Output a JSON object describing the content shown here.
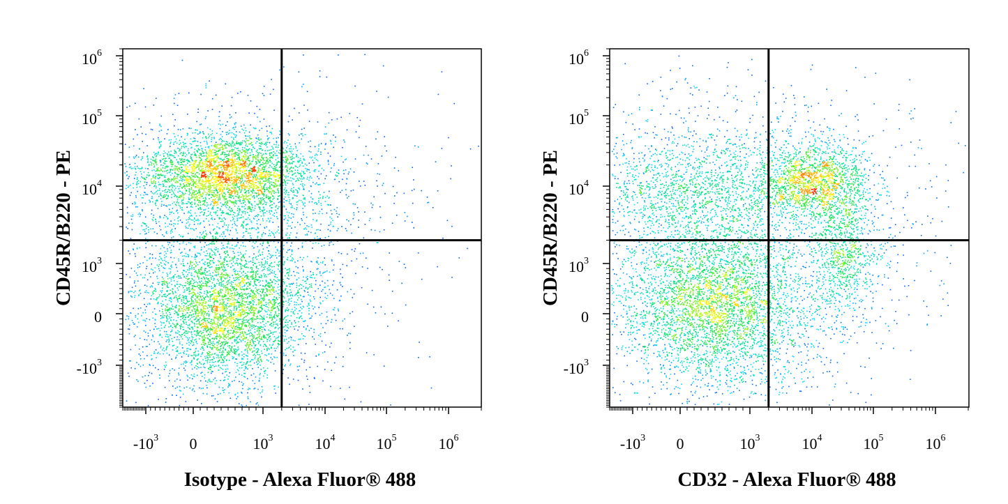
{
  "chart_data": [
    {
      "type": "scatter",
      "subtype": "flow-cytometry-density-dot-plot",
      "title": "",
      "xlabel": "Isotype - Alexa Fluor® 488",
      "ylabel": "CD45R/B220 - PE",
      "x_scale": "biexponential",
      "y_scale": "biexponential",
      "xlim": [
        -2500,
        2000000
      ],
      "ylim": [
        -3500,
        1200000
      ],
      "x_ticks": [
        {
          "value": -1000,
          "base": "-10",
          "exp": "3"
        },
        {
          "value": 0,
          "base": "0",
          "exp": ""
        },
        {
          "value": 1000,
          "base": "10",
          "exp": "3"
        },
        {
          "value": 10000,
          "base": "10",
          "exp": "4"
        },
        {
          "value": 100000,
          "base": "10",
          "exp": "5"
        },
        {
          "value": 1000000,
          "base": "10",
          "exp": "6"
        }
      ],
      "y_ticks": [
        {
          "value": -1000,
          "base": "-10",
          "exp": "3"
        },
        {
          "value": 0,
          "base": "0",
          "exp": ""
        },
        {
          "value": 1000,
          "base": "10",
          "exp": "3"
        },
        {
          "value": 10000,
          "base": "10",
          "exp": "4"
        },
        {
          "value": 100000,
          "base": "10",
          "exp": "5"
        },
        {
          "value": 1000000,
          "base": "10",
          "exp": "6"
        }
      ],
      "quadrant_gate": {
        "x": 2000,
        "y": 2000
      },
      "populations": [
        {
          "x_center": 300,
          "y_center": 12000,
          "density": "high"
        },
        {
          "x_center": 300,
          "y_center": 200,
          "density": "high"
        }
      ],
      "grid": false,
      "legend": "none",
      "colormap": [
        "#0000ff",
        "#00ffff",
        "#00ff00",
        "#ffff00",
        "#ff0000"
      ]
    },
    {
      "type": "scatter",
      "subtype": "flow-cytometry-density-dot-plot",
      "title": "",
      "xlabel": "CD32 - Alexa Fluor® 488",
      "ylabel": "CD45R/B220 - PE",
      "x_scale": "biexponential",
      "y_scale": "biexponential",
      "xlim": [
        -2500,
        2000000
      ],
      "ylim": [
        -3500,
        1200000
      ],
      "x_ticks": [
        {
          "value": -1000,
          "base": "-10",
          "exp": "3"
        },
        {
          "value": 0,
          "base": "0",
          "exp": ""
        },
        {
          "value": 1000,
          "base": "10",
          "exp": "3"
        },
        {
          "value": 10000,
          "base": "10",
          "exp": "4"
        },
        {
          "value": 100000,
          "base": "10",
          "exp": "5"
        },
        {
          "value": 1000000,
          "base": "10",
          "exp": "6"
        }
      ],
      "y_ticks": [
        {
          "value": -1000,
          "base": "-10",
          "exp": "3"
        },
        {
          "value": 0,
          "base": "0",
          "exp": ""
        },
        {
          "value": 1000,
          "base": "10",
          "exp": "3"
        },
        {
          "value": 10000,
          "base": "10",
          "exp": "4"
        },
        {
          "value": 100000,
          "base": "10",
          "exp": "5"
        },
        {
          "value": 1000000,
          "base": "10",
          "exp": "6"
        }
      ],
      "quadrant_gate": {
        "x": 2000,
        "y": 2000
      },
      "populations": [
        {
          "x_center": 9000,
          "y_center": 12000,
          "density": "high"
        },
        {
          "x_center": 300,
          "y_center": 200,
          "density": "medium"
        },
        {
          "x_center": 25000,
          "y_center": 1500,
          "density": "medium"
        }
      ],
      "grid": false,
      "legend": "none",
      "colormap": [
        "#0000ff",
        "#00ffff",
        "#00ff00",
        "#ffff00",
        "#ff0000"
      ]
    }
  ]
}
